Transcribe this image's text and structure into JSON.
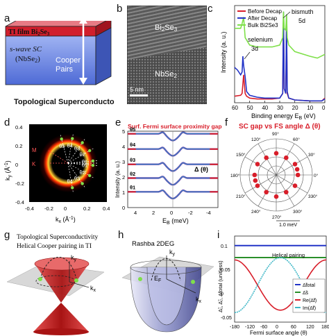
{
  "figure": {
    "labels": [
      "a",
      "b",
      "c",
      "d",
      "e",
      "f",
      "g",
      "h",
      "i"
    ]
  },
  "panel_a": {
    "ti_film": "TI film Bi",
    "ti_film_sub1": "2",
    "ti_film_mid": "Se",
    "ti_film_sub2": "3",
    "sc_line1": "s-wave SC",
    "sc_line2": "(NbSe",
    "sc_line2_sub": "2",
    "sc_line2_end": ")",
    "cooper1": "Cooper",
    "cooper2": "Pairs",
    "caption": "Topological Superconductors",
    "colors": {
      "top": "#d11f2c",
      "bottom": "#5b79e0",
      "arrow": "#ffffff"
    }
  },
  "panel_b": {
    "layer_top": "Bi",
    "layer_top_sub1": "2",
    "layer_top_mid": "Se",
    "layer_top_sub2": "3",
    "layer_bottom": "NbSe",
    "layer_bottom_sub": "2",
    "scalebar": "5 nm"
  },
  "panel_c": {
    "ylabel": "Intensity (a. u.)",
    "xlabel": "Binding energy E",
    "xlabel_sub": "B",
    "xlabel_unit": " (eV)",
    "annotations": [
      "bismuth",
      "5d",
      "selenium",
      "3d"
    ],
    "chart_data": {
      "type": "line",
      "xlim": [
        60,
        0
      ],
      "xticks": [
        60,
        50,
        40,
        30,
        20,
        10,
        0
      ],
      "series": [
        {
          "name": "Before Decap",
          "color": "#d81e2a",
          "x": [
            60,
            56,
            55,
            54,
            53,
            52,
            50,
            45,
            40,
            35,
            30,
            28,
            27.5,
            27,
            26,
            25.5,
            25,
            24,
            20,
            10,
            2,
            0
          ],
          "y": [
            0.07,
            0.08,
            0.1,
            0.3,
            0.1,
            0.07,
            0.05,
            0.04,
            0.04,
            0.04,
            0.05,
            0.1,
            0.95,
            0.15,
            0.1,
            0.85,
            0.1,
            0.05,
            0.03,
            0.02,
            0.02,
            0.05
          ]
        },
        {
          "name": "After Decap",
          "color": "#2233c7",
          "x": [
            60,
            58,
            56,
            55,
            54.5,
            54,
            53,
            52,
            50,
            45,
            40,
            35,
            30,
            28,
            27.5,
            27,
            26,
            25.5,
            25,
            24,
            20,
            10,
            2,
            0
          ],
          "y": [
            0.38,
            0.35,
            0.3,
            0.33,
            0.5,
            0.4,
            0.28,
            0.12,
            0.08,
            0.06,
            0.05,
            0.05,
            0.05,
            0.1,
            0.98,
            0.15,
            0.1,
            0.95,
            0.12,
            0.05,
            0.03,
            0.02,
            0.02,
            0.04
          ]
        },
        {
          "name": "Bulk Bi2Se3",
          "color": "#7fe04a",
          "x": [
            60,
            56,
            55,
            54,
            53,
            50,
            45,
            40,
            35,
            30,
            28,
            27.5,
            27,
            26,
            25.5,
            25,
            24,
            20,
            10,
            5,
            0
          ],
          "y": [
            0.8,
            0.8,
            0.85,
            0.92,
            0.7,
            0.62,
            0.6,
            0.6,
            0.6,
            0.62,
            0.7,
            0.98,
            0.8,
            0.78,
            0.95,
            0.7,
            0.62,
            0.55,
            0.5,
            0.48,
            0.52
          ]
        }
      ]
    }
  },
  "panel_d": {
    "ylabel": "k",
    "ylabel_sub": "y",
    "ylabel_unit": " (Å",
    "ylabel_exp": "-1",
    "ylabel_close": ")",
    "xlabel": "k",
    "xlabel_sub": "x",
    "xlabel_unit": " (Å",
    "xlabel_exp": "-1",
    "xlabel_close": ")",
    "xticks": [
      "-0.4",
      "-0.2",
      "0",
      "0.2",
      "0.4"
    ],
    "yticks": [
      "0.4",
      "0.2",
      "0",
      "-0.2",
      "-0.4"
    ],
    "points": [
      "θ5",
      "θ4",
      "θ3",
      "θ2",
      "θ1",
      "θ1'",
      "θ2'",
      "θ3'",
      "θ4'"
    ],
    "symmetry": [
      "M",
      "K"
    ]
  },
  "panel_e": {
    "title": "Surf. Fermi surface proximity gap",
    "ylabel": "Intensity (a. u.)",
    "xlabel": "E",
    "xlabel_sub": "B",
    "xlabel_unit": " (meV)",
    "delta_label": "Δ (θ)",
    "curve_labels": [
      "θ5",
      "θ4",
      "θ3",
      "θ2",
      "θ1"
    ],
    "yticks": [
      "5",
      "4",
      "3",
      "2",
      "1",
      "0"
    ],
    "xticks": [
      "4",
      "2",
      "0",
      "-2",
      "-4"
    ],
    "chart_data": {
      "type": "line",
      "xlabel": "E_B (meV)",
      "ylabel": "Intensity (a. u.)",
      "xlim": [
        5,
        -5
      ],
      "ylim": [
        0,
        5
      ],
      "series": [
        {
          "name": "θ5",
          "offset": 4.5
        },
        {
          "name": "θ4",
          "offset": 3.5
        },
        {
          "name": "θ3",
          "offset": 2.5
        },
        {
          "name": "θ2",
          "offset": 1.6
        },
        {
          "name": "θ1",
          "offset": 0.7
        }
      ]
    }
  },
  "panel_f": {
    "title": "SC gap vs FS angle Δ (θ)",
    "angles": [
      "0°",
      "30°",
      "60°",
      "90°",
      "120°",
      "150°",
      "180°",
      "210°",
      "240°",
      "270°",
      "300°",
      "330°"
    ],
    "scale_label": "1.0 meV",
    "chart_data": {
      "type": "scatter",
      "coordinate": "polar",
      "series": [
        {
          "name": "Δ(θ)",
          "color": "#d81e2a",
          "theta_deg": [
            0,
            30,
            60,
            90,
            120,
            150,
            180,
            210,
            240,
            270,
            300,
            330,
            15,
            195
          ],
          "r": [
            0.6,
            0.6,
            0.55,
            0.6,
            0.55,
            0.6,
            0.6,
            0.6,
            0.55,
            0.6,
            0.55,
            0.6,
            0.6,
            0.6
          ]
        }
      ]
    }
  },
  "panel_g": {
    "title1": "Topological Superconductivity",
    "title2": "Helical Cooper pairing in TI",
    "ky": "k",
    "ky_sub": "y",
    "kx": "k",
    "kx_sub": "x"
  },
  "panel_h": {
    "title": "Rashba 2DEG",
    "ky": "k",
    "ky_sub": "y",
    "kx": "k",
    "kx_sub": "x",
    "ef": "E",
    "ef_sub": "F"
  },
  "panel_i": {
    "ylabel": "Δ̃",
    "ylabel_full": "Δ̃₁, Δ̃₂, Δ̃total (unitless)",
    "xlabel": "Fermi surface angle (θ)",
    "annotation": "Helical pairing",
    "xticks": [
      "-180",
      "-120",
      "-60",
      "0",
      "60",
      "120",
      "180"
    ],
    "yticks": [
      "0.1",
      "0.05",
      "0",
      "-0.05"
    ],
    "legend": [
      "Δ̃total",
      "Δ̃s",
      "Re(Δ̃t)",
      "Im(Δ̃t)"
    ],
    "chart_data": {
      "type": "line",
      "xlim": [
        -180,
        180
      ],
      "ylim": [
        -0.06,
        0.12
      ],
      "series": [
        {
          "name": "Δ̃total",
          "color": "#2233c7",
          "x": [
            -180,
            180
          ],
          "y": [
            0.1,
            0.1
          ]
        },
        {
          "name": "Δ̃s",
          "color": "#2a8f2a",
          "x": [
            -180,
            180
          ],
          "y": [
            0.075,
            0.075
          ]
        },
        {
          "name": "Re(Δ̃t)",
          "color": "#d81e2a",
          "x": [
            -180,
            -120,
            -60,
            0,
            60,
            120,
            180
          ],
          "y": [
            0.07,
            0.045,
            -0.005,
            -0.035,
            -0.005,
            0.045,
            0.07
          ]
        },
        {
          "name": "Im(Δ̃t)",
          "color": "#3fb7c7",
          "x": [
            -180,
            -120,
            -60,
            0,
            60,
            120,
            180
          ],
          "y": [
            -0.04,
            -0.005,
            0.055,
            0.075,
            0.055,
            -0.005,
            -0.04
          ]
        }
      ]
    }
  }
}
